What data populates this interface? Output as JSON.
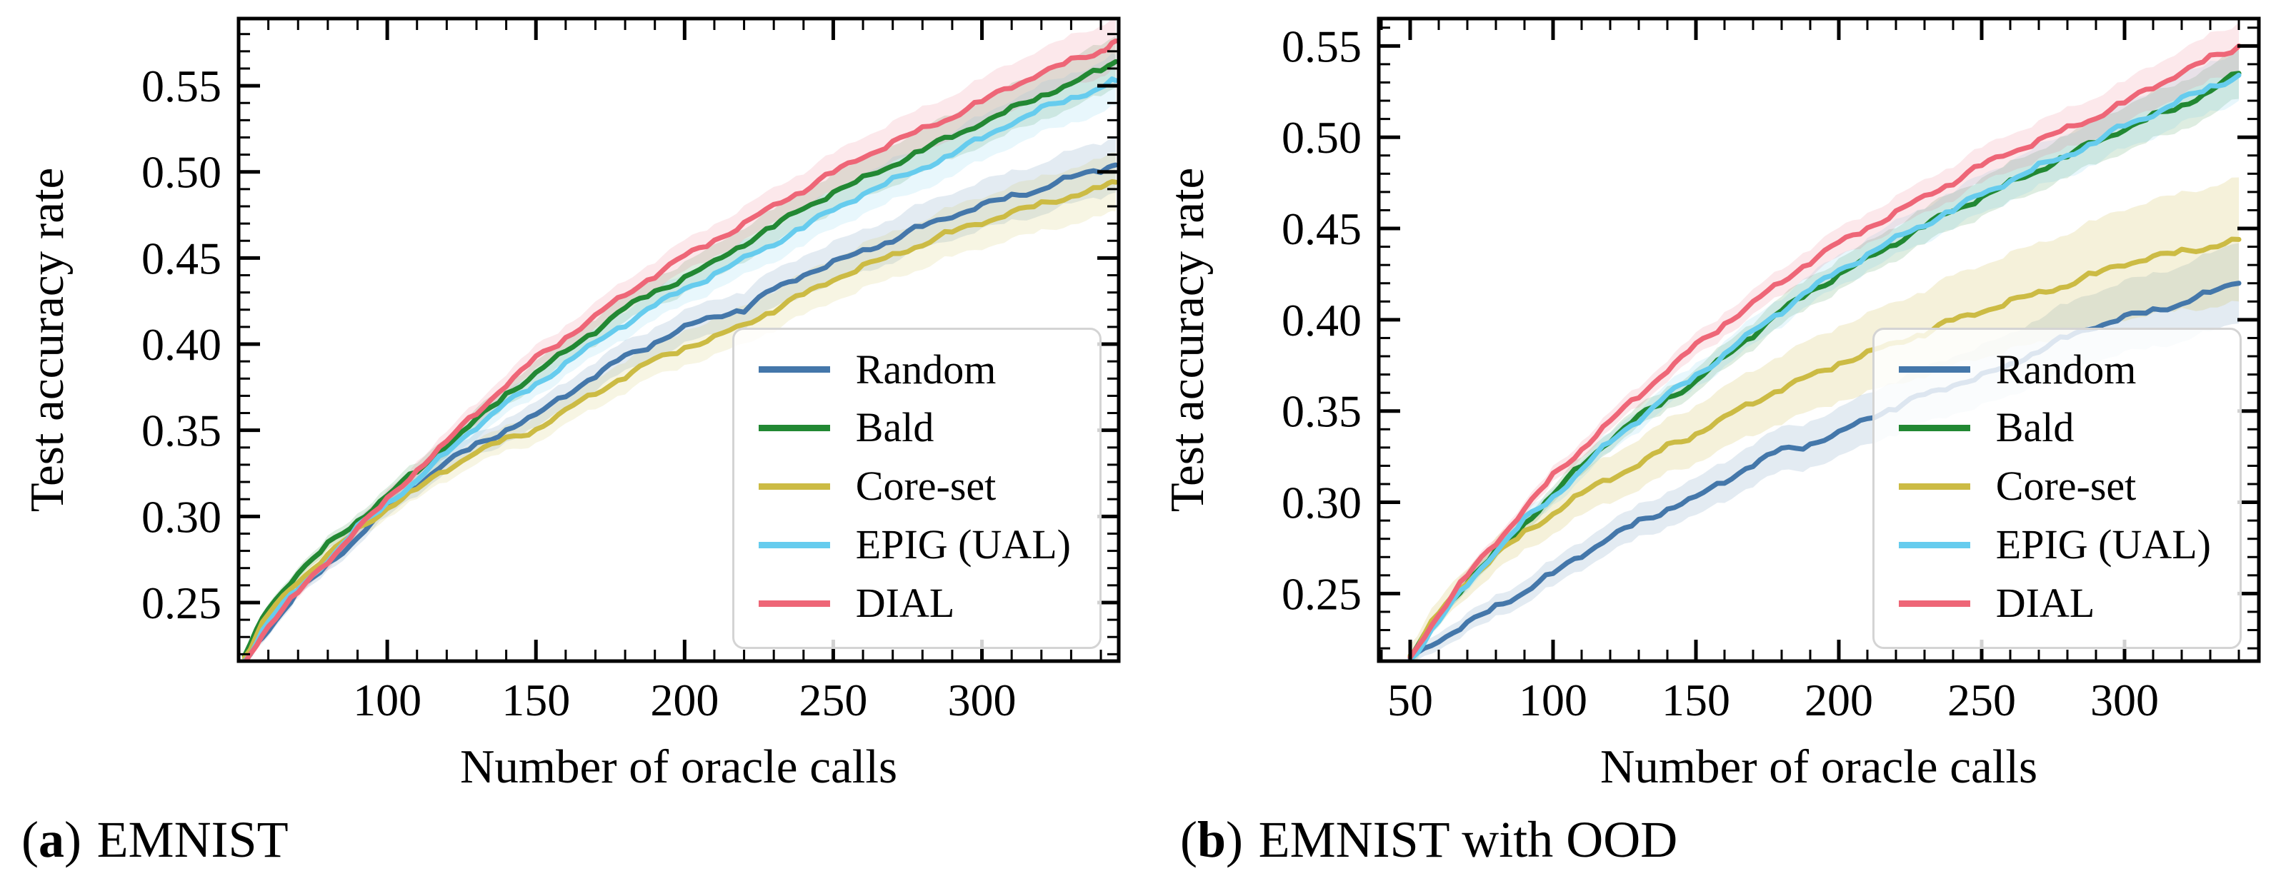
{
  "figure": {
    "panels": [
      {
        "caption": {
          "open": "(",
          "letter": "a",
          "close": ")",
          "text": "EMNIST"
        }
      },
      {
        "caption": {
          "open": "(",
          "letter": "b",
          "close": ")",
          "text": "EMNIST with OOD"
        }
      }
    ]
  },
  "chart_data": [
    {
      "type": "line",
      "title": "(a) EMNIST",
      "xlabel": "Number of oracle calls",
      "ylabel": "Test accuracy rate",
      "xlim": [
        50,
        346
      ],
      "ylim": [
        0.216,
        0.589
      ],
      "xticks": [
        100,
        150,
        200,
        250,
        300
      ],
      "yticks": [
        0.25,
        0.3,
        0.35,
        0.4,
        0.45,
        0.5,
        0.55
      ],
      "minor_x_step": 10,
      "minor_y_step": 0.01,
      "grid": false,
      "legend_position": "lower right",
      "x": [
        52,
        60,
        70,
        80,
        90,
        100,
        110,
        120,
        130,
        140,
        150,
        160,
        170,
        180,
        190,
        200,
        210,
        220,
        230,
        240,
        250,
        260,
        270,
        280,
        290,
        300,
        310,
        320,
        330,
        340,
        345
      ],
      "series": [
        {
          "name": "Random",
          "color": "#4477AA",
          "band": 0.016,
          "band_alpha": 0.15,
          "values": [
            0.216,
            0.234,
            0.256,
            0.272,
            0.289,
            0.305,
            0.318,
            0.331,
            0.341,
            0.351,
            0.359,
            0.371,
            0.381,
            0.392,
            0.401,
            0.41,
            0.417,
            0.42,
            0.431,
            0.44,
            0.447,
            0.455,
            0.461,
            0.468,
            0.474,
            0.48,
            0.486,
            0.491,
            0.497,
            0.501,
            0.504
          ]
        },
        {
          "name": "Bald",
          "color": "#228833",
          "band": 0.015,
          "band_alpha": 0.15,
          "values": [
            0.219,
            0.246,
            0.267,
            0.283,
            0.298,
            0.313,
            0.326,
            0.341,
            0.355,
            0.371,
            0.384,
            0.396,
            0.408,
            0.42,
            0.43,
            0.439,
            0.448,
            0.459,
            0.468,
            0.478,
            0.488,
            0.496,
            0.505,
            0.513,
            0.52,
            0.528,
            0.536,
            0.545,
            0.552,
            0.559,
            0.564
          ]
        },
        {
          "name": "Core-set",
          "color": "#CCBB44",
          "band": 0.017,
          "band_alpha": 0.15,
          "values": [
            0.218,
            0.243,
            0.262,
            0.277,
            0.292,
            0.306,
            0.316,
            0.327,
            0.337,
            0.344,
            0.351,
            0.362,
            0.372,
            0.381,
            0.39,
            0.398,
            0.404,
            0.412,
            0.42,
            0.428,
            0.437,
            0.445,
            0.452,
            0.459,
            0.465,
            0.47,
            0.476,
            0.481,
            0.487,
            0.491,
            0.494
          ]
        },
        {
          "name": "EPIG (UAL)",
          "color": "#66CCEE",
          "band": 0.015,
          "band_alpha": 0.15,
          "values": [
            0.216,
            0.24,
            0.257,
            0.274,
            0.293,
            0.308,
            0.322,
            0.337,
            0.352,
            0.365,
            0.376,
            0.39,
            0.401,
            0.412,
            0.422,
            0.431,
            0.441,
            0.45,
            0.459,
            0.468,
            0.477,
            0.487,
            0.495,
            0.503,
            0.511,
            0.519,
            0.528,
            0.536,
            0.543,
            0.55,
            0.553
          ]
        },
        {
          "name": "DIAL",
          "color": "#EE6677",
          "band": 0.015,
          "band_alpha": 0.15,
          "values": [
            0.215,
            0.238,
            0.256,
            0.273,
            0.293,
            0.309,
            0.328,
            0.344,
            0.36,
            0.376,
            0.391,
            0.404,
            0.417,
            0.429,
            0.44,
            0.45,
            0.46,
            0.47,
            0.481,
            0.49,
            0.499,
            0.508,
            0.517,
            0.525,
            0.533,
            0.541,
            0.549,
            0.557,
            0.564,
            0.571,
            0.576
          ]
        }
      ]
    },
    {
      "type": "line",
      "title": "(b) EMNIST with OOD",
      "xlabel": "Number of oracle calls",
      "ylabel": "Test accuracy rate",
      "xlim": [
        39,
        347
      ],
      "ylim": [
        0.213,
        0.565
      ],
      "xticks": [
        50,
        100,
        150,
        200,
        250,
        300
      ],
      "yticks": [
        0.25,
        0.3,
        0.35,
        0.4,
        0.45,
        0.5,
        0.55
      ],
      "minor_x_step": 10,
      "minor_y_step": 0.01,
      "grid": false,
      "legend_position": "lower right",
      "x": [
        50,
        60,
        70,
        80,
        90,
        100,
        110,
        120,
        130,
        140,
        150,
        160,
        170,
        180,
        190,
        200,
        210,
        220,
        230,
        240,
        250,
        260,
        270,
        280,
        290,
        300,
        310,
        320,
        330,
        340
      ],
      "series": [
        {
          "name": "Random",
          "color": "#4477AA",
          "band": 0.022,
          "band_alpha": 0.15,
          "values": [
            0.214,
            0.224,
            0.233,
            0.243,
            0.252,
            0.261,
            0.271,
            0.28,
            0.289,
            0.297,
            0.303,
            0.312,
            0.32,
            0.328,
            0.332,
            0.338,
            0.347,
            0.352,
            0.358,
            0.364,
            0.369,
            0.376,
            0.384,
            0.39,
            0.396,
            0.401,
            0.405,
            0.41,
            0.415,
            0.42
          ]
        },
        {
          "name": "Bald",
          "color": "#228833",
          "band": 0.014,
          "band_alpha": 0.15,
          "values": [
            0.215,
            0.237,
            0.256,
            0.272,
            0.289,
            0.305,
            0.32,
            0.334,
            0.346,
            0.357,
            0.367,
            0.38,
            0.392,
            0.404,
            0.415,
            0.425,
            0.434,
            0.443,
            0.451,
            0.459,
            0.467,
            0.475,
            0.483,
            0.49,
            0.497,
            0.504,
            0.511,
            0.518,
            0.526,
            0.535
          ]
        },
        {
          "name": "Core-set",
          "color": "#CCBB44",
          "band": 0.034,
          "band_alpha": 0.2,
          "values": [
            0.216,
            0.239,
            0.256,
            0.271,
            0.283,
            0.295,
            0.305,
            0.313,
            0.32,
            0.33,
            0.338,
            0.347,
            0.355,
            0.362,
            0.368,
            0.376,
            0.382,
            0.388,
            0.393,
            0.399,
            0.404,
            0.41,
            0.415,
            0.42,
            0.425,
            0.43,
            0.434,
            0.437,
            0.441,
            0.444
          ]
        },
        {
          "name": "EPIG (UAL)",
          "color": "#66CCEE",
          "band": 0.014,
          "band_alpha": 0.15,
          "values": [
            0.214,
            0.236,
            0.254,
            0.273,
            0.29,
            0.303,
            0.319,
            0.333,
            0.345,
            0.358,
            0.369,
            0.382,
            0.394,
            0.405,
            0.416,
            0.426,
            0.436,
            0.445,
            0.453,
            0.46,
            0.468,
            0.476,
            0.484,
            0.491,
            0.498,
            0.506,
            0.512,
            0.52,
            0.528,
            0.534
          ]
        },
        {
          "name": "DIAL",
          "color": "#EE6677",
          "band": 0.013,
          "band_alpha": 0.15,
          "values": [
            0.215,
            0.24,
            0.26,
            0.277,
            0.296,
            0.314,
            0.33,
            0.345,
            0.358,
            0.372,
            0.385,
            0.398,
            0.41,
            0.421,
            0.432,
            0.441,
            0.45,
            0.459,
            0.468,
            0.476,
            0.484,
            0.491,
            0.498,
            0.505,
            0.512,
            0.519,
            0.527,
            0.535,
            0.543,
            0.55
          ]
        }
      ]
    }
  ]
}
